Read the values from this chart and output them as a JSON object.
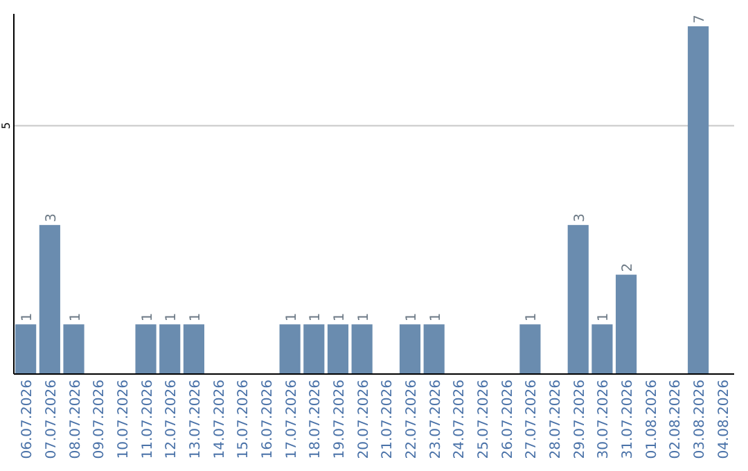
{
  "chart_data": {
    "type": "bar",
    "categories": [
      "06.07.2026",
      "07.07.2026",
      "08.07.2026",
      "09.07.2026",
      "10.07.2026",
      "11.07.2026",
      "12.07.2026",
      "13.07.2026",
      "14.07.2026",
      "15.07.2026",
      "16.07.2026",
      "17.07.2026",
      "18.07.2026",
      "19.07.2026",
      "20.07.2026",
      "21.07.2026",
      "22.07.2026",
      "23.07.2026",
      "24.07.2026",
      "25.07.2026",
      "26.07.2026",
      "27.07.2026",
      "28.07.2026",
      "29.07.2026",
      "30.07.2026",
      "31.07.2026",
      "01.08.2026",
      "02.08.2026",
      "03.08.2026",
      "04.08.2026"
    ],
    "values": [
      1,
      3,
      1,
      0,
      0,
      1,
      1,
      1,
      0,
      0,
      0,
      1,
      1,
      1,
      1,
      0,
      1,
      1,
      0,
      0,
      0,
      1,
      0,
      3,
      1,
      2,
      0,
      0,
      7,
      0
    ],
    "value_labels": [
      "1",
      "3",
      "1",
      null,
      null,
      "1",
      "1",
      "1",
      null,
      null,
      null,
      "1",
      "1",
      "1",
      "1",
      null,
      "1",
      "1",
      null,
      null,
      null,
      "1",
      null,
      "3",
      "1",
      "2",
      null,
      null,
      "7",
      null
    ],
    "color": "#6a8caf",
    "ylim": [
      0,
      7.25
    ],
    "yticks": [
      5
    ],
    "grid": "y"
  }
}
